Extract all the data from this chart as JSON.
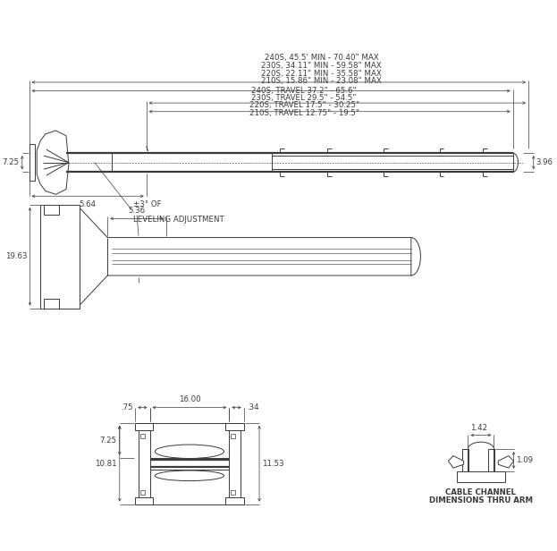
{
  "bg_color": "#ffffff",
  "line_color": "#3a3a3a",
  "dim_color": "#3a3a3a",
  "font_family": "DejaVu Sans",
  "title_lines": [
    "240S, 45.5' MIN - 70.40\" MAX",
    "230S, 34.11\" MIN - 59.58\" MAX",
    "220S, 22.11\" MIN - 35.58\" MAX",
    "210S, 15.86\" MIN - 23.08\" MAX"
  ],
  "travel_lines": [
    "240S, TRAVEL 37.2\" - 65.6\"",
    "230S, TRAVEL 29.5\" - 54.5\"",
    "220S, TRAVEL 17.5\" - 30.25\"",
    "210S, TRAVEL 12.75\" - 19.5\""
  ],
  "dim_7_25": "7.25",
  "dim_3_96": "3.96",
  "dim_5_64": "5.64",
  "dim_pm3_line1": "±3° OF",
  "dim_pm3_line2": "LEVELING ADJUSTMENT",
  "dim_5_36": "5.36",
  "dim_19_63": "19.63",
  "dim_75": ".75",
  "dim_16_00": "16.00",
  "dim_34": ".34",
  "dim_7_25b": "7.25",
  "dim_10_81": "10.81",
  "dim_11_53": "11.53",
  "dim_1_42": "1.42",
  "dim_1_09": "1.09",
  "cable_label_line1": "CABLE CHANNEL",
  "cable_label_line2": "DIMENSIONS THRU ARM",
  "lw_thick": 1.6,
  "lw_thin": 0.7,
  "lw_dim": 0.5
}
